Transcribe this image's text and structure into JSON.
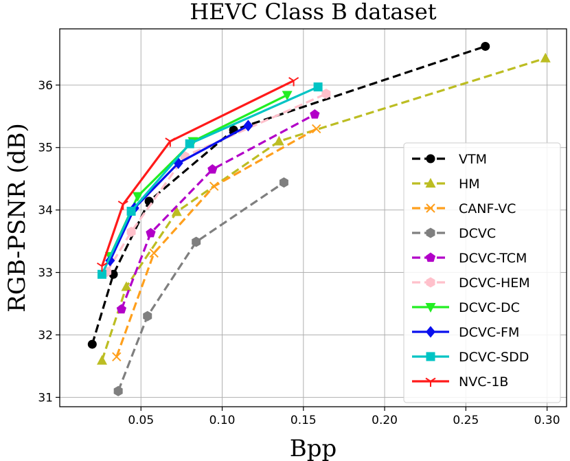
{
  "chart_data": {
    "type": "line",
    "title": "HEVC Class B dataset",
    "xlabel": "Bpp",
    "ylabel": "RGB-PSNR (dB)",
    "xlim": [
      0.0,
      0.312
    ],
    "ylim": [
      30.85,
      36.9
    ],
    "xticks": [
      0.05,
      0.1,
      0.15,
      0.2,
      0.25,
      0.3
    ],
    "xtick_labels": [
      "0.05",
      "0.10",
      "0.15",
      "0.20",
      "0.25",
      "0.30"
    ],
    "yticks": [
      31,
      32,
      33,
      34,
      35,
      36
    ],
    "ytick_labels": [
      "31",
      "32",
      "33",
      "34",
      "35",
      "36"
    ],
    "grid": true,
    "legend_position": "lower-right",
    "series": [
      {
        "name": "VTM",
        "color": "#000000",
        "dash": "dashed",
        "marker": "circle",
        "x": [
          0.02,
          0.033,
          0.055,
          0.107,
          0.262
        ],
        "y": [
          31.85,
          32.97,
          34.14,
          35.28,
          36.62
        ]
      },
      {
        "name": "HM",
        "color": "#bcbd22",
        "dash": "dashed",
        "marker": "triangle-up",
        "x": [
          0.026,
          0.041,
          0.072,
          0.135,
          0.299
        ],
        "y": [
          31.59,
          32.77,
          33.97,
          35.1,
          36.43
        ]
      },
      {
        "name": "CANF-VC",
        "color": "#ff9f1c",
        "dash": "dashed",
        "marker": "x",
        "x": [
          0.035,
          0.058,
          0.095,
          0.158
        ],
        "y": [
          31.65,
          33.31,
          34.38,
          35.3
        ]
      },
      {
        "name": "DCVC",
        "color": "#7f7f7f",
        "dash": "dashed",
        "marker": "hexagon",
        "x": [
          0.036,
          0.054,
          0.084,
          0.138
        ],
        "y": [
          31.1,
          32.3,
          33.49,
          34.44
        ]
      },
      {
        "name": "DCVC-TCM",
        "color": "#b200c8",
        "dash": "dashed",
        "marker": "pentagon",
        "x": [
          0.038,
          0.056,
          0.094,
          0.157
        ],
        "y": [
          32.41,
          33.63,
          34.65,
          35.53
        ]
      },
      {
        "name": "DCVC-HEM",
        "color": "#ffc0cb",
        "dash": "dashed",
        "marker": "hexagon",
        "x": [
          0.029,
          0.044,
          0.077,
          0.164
        ],
        "y": [
          33.01,
          33.65,
          34.86,
          35.86
        ]
      },
      {
        "name": "DCVC-DC",
        "color": "#22ee22",
        "dash": "solid",
        "marker": "triangle-down",
        "x": [
          0.031,
          0.048,
          0.082,
          0.14
        ],
        "y": [
          33.26,
          34.22,
          35.1,
          35.84
        ]
      },
      {
        "name": "DCVC-FM",
        "color": "#0a10ee",
        "dash": "solid",
        "marker": "diamond",
        "x": [
          0.031,
          0.046,
          0.073,
          0.116
        ],
        "y": [
          33.19,
          34.03,
          34.75,
          35.35
        ]
      },
      {
        "name": "DCVC-SDD",
        "color": "#00c4c4",
        "dash": "solid",
        "marker": "square",
        "x": [
          0.026,
          0.044,
          0.08,
          0.159
        ],
        "y": [
          32.97,
          33.98,
          35.06,
          35.97
        ]
      },
      {
        "name": "NVC-1B",
        "color": "#ff1a1a",
        "dash": "solid",
        "marker": "tri-down",
        "x": [
          0.026,
          0.039,
          0.068,
          0.144
        ],
        "y": [
          33.1,
          34.09,
          35.1,
          36.07
        ]
      }
    ]
  }
}
